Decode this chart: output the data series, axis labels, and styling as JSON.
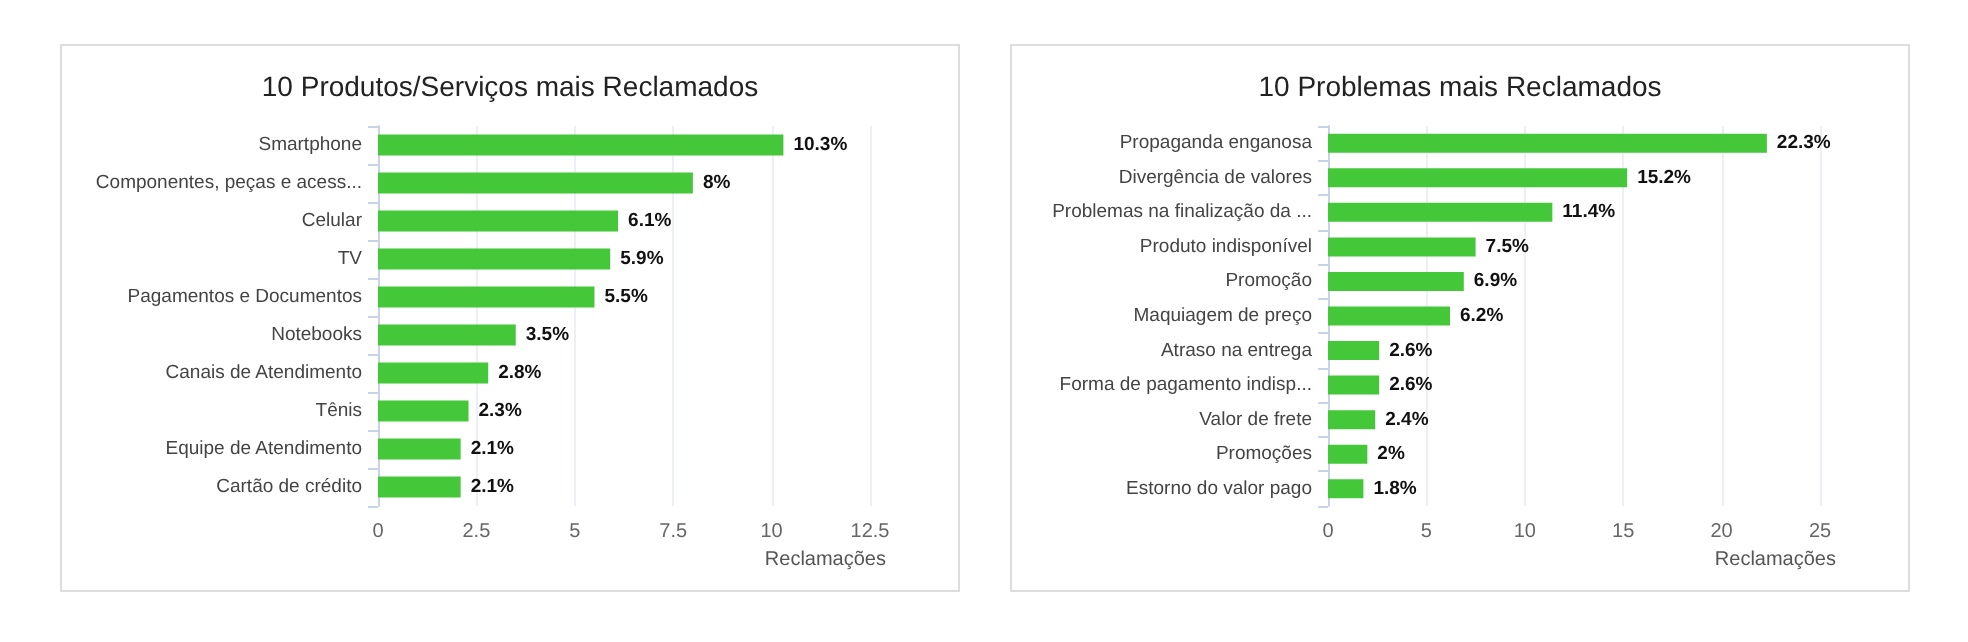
{
  "chart_data": [
    {
      "type": "bar",
      "orientation": "horizontal",
      "title": "10 Produtos/Serviços mais Reclamados",
      "xlabel": "Reclamações",
      "categories": [
        "Smartphone",
        "Componentes, peças e acess...",
        "Celular",
        "TV",
        "Pagamentos e Documentos",
        "Notebooks",
        "Canais de Atendimento",
        "Tênis",
        "Equipe de Atendimento",
        "Cartão de crédito"
      ],
      "values": [
        10.3,
        8,
        6.1,
        5.9,
        5.5,
        3.5,
        2.8,
        2.3,
        2.1,
        2.1
      ],
      "value_labels": [
        "10.3%",
        "8%",
        "6.1%",
        "5.9%",
        "5.5%",
        "3.5%",
        "2.8%",
        "2.3%",
        "2.1%",
        "2.1%"
      ],
      "color": "#44c83a",
      "xlim": [
        0,
        12.5
      ],
      "xticks": [
        0,
        2.5,
        5,
        7.5,
        10,
        12.5
      ],
      "grid": "x"
    },
    {
      "type": "bar",
      "orientation": "horizontal",
      "title": "10 Problemas mais Reclamados",
      "xlabel": "Reclamações",
      "categories": [
        "Propaganda enganosa",
        "Divergência de valores",
        "Problemas na finalização da ...",
        "Produto indisponível",
        "Promoção",
        "Maquiagem de preço",
        "Atraso na entrega",
        "Forma de pagamento indisp...",
        "Valor de frete",
        "Promoções",
        "Estorno do valor pago"
      ],
      "values": [
        22.3,
        15.2,
        11.4,
        7.5,
        6.9,
        6.2,
        2.6,
        2.6,
        2.4,
        2,
        1.8
      ],
      "value_labels": [
        "22.3%",
        "15.2%",
        "11.4%",
        "7.5%",
        "6.9%",
        "6.2%",
        "2.6%",
        "2.6%",
        "2.4%",
        "2%",
        "1.8%"
      ],
      "color": "#44c83a",
      "xlim": [
        0,
        25
      ],
      "xticks": [
        0,
        5,
        10,
        15,
        20,
        25
      ],
      "grid": "x"
    }
  ]
}
